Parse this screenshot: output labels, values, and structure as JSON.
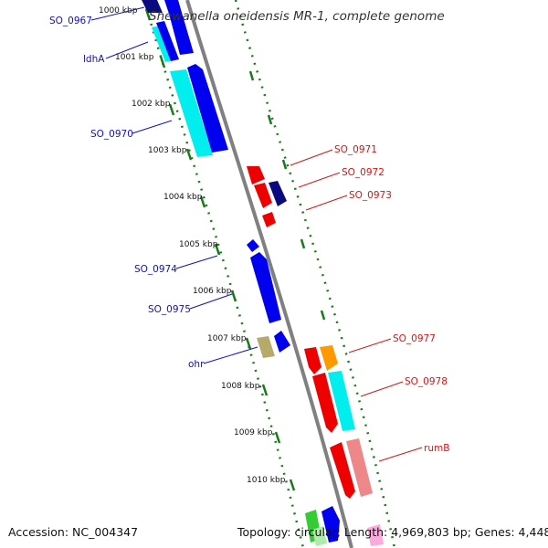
{
  "title": "Shewanella oneidensis MR-1, complete genome",
  "footer": {
    "accession": "Accession: NC_004347",
    "info": "Topology: circular; Length: 4,969,803 bp; Genes: 4,448"
  },
  "ticks": [
    "1000 kbp",
    "1001 kbp",
    "1002 kbp",
    "1003 kbp",
    "1004 kbp",
    "1005 kbp",
    "1006 kbp",
    "1007 kbp",
    "1008 kbp",
    "1009 kbp",
    "1010 kbp"
  ],
  "left_labels": [
    "SO_0967",
    "ldhA",
    "SO_0970",
    "SO_0974",
    "SO_0975",
    "ohr"
  ],
  "right_labels": [
    "SO_0971",
    "SO_0972",
    "SO_0973",
    "SO_0977",
    "SO_0978",
    "rumB"
  ],
  "colors": {
    "left_label": "#1010c0",
    "right_label": "#e01010",
    "backbone": "#808080",
    "ticks": "#1a7a1a",
    "blue": "#0000ee",
    "cyan": "#00eeee",
    "red": "#ee0000",
    "orange": "#ff9900",
    "olive": "#b5aa6a",
    "salmon": "#ee8888",
    "navy": "#0a0a80"
  }
}
